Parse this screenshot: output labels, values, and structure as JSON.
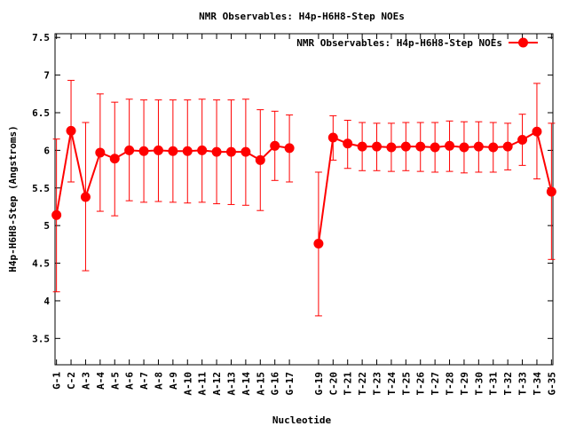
{
  "chart_data": {
    "type": "line",
    "title": "NMR Observables: H4p-H6H8-Step NOEs",
    "xlabel": "Nucleotide",
    "ylabel": "H4p-H6H8-Step (Angstroms)",
    "ylim": [
      3.15,
      7.55
    ],
    "yticks": [
      3.5,
      4,
      4.5,
      5,
      5.5,
      6,
      6.5,
      7,
      7.5
    ],
    "ytick_labels": [
      "3.5",
      "4",
      "4.5",
      "5",
      "5.5",
      "6",
      "6.5",
      "7",
      "7.5"
    ],
    "xlim": [
      0.9,
      35.1
    ],
    "grid": false,
    "legend_position": "top-right",
    "series_color": "#ff0000",
    "series": [
      {
        "name": "NMR Observables: H4p-H6H8-Step NOEs",
        "points": [
          {
            "label": "G-1",
            "x": 1,
            "y": 5.14,
            "err_low": 4.12,
            "err_high": 6.15
          },
          {
            "label": "C-2",
            "x": 2,
            "y": 6.26,
            "err_low": 5.58,
            "err_high": 6.93
          },
          {
            "label": "A-3",
            "x": 3,
            "y": 5.38,
            "err_low": 4.4,
            "err_high": 6.37
          },
          {
            "label": "A-4",
            "x": 4,
            "y": 5.97,
            "err_low": 5.19,
            "err_high": 6.75
          },
          {
            "label": "A-5",
            "x": 5,
            "y": 5.89,
            "err_low": 5.13,
            "err_high": 6.64
          },
          {
            "label": "A-6",
            "x": 6,
            "y": 6.0,
            "err_low": 5.33,
            "err_high": 6.68
          },
          {
            "label": "A-7",
            "x": 7,
            "y": 5.99,
            "err_low": 5.31,
            "err_high": 6.67
          },
          {
            "label": "A-8",
            "x": 8,
            "y": 6.0,
            "err_low": 5.32,
            "err_high": 6.67
          },
          {
            "label": "A-9",
            "x": 9,
            "y": 5.99,
            "err_low": 5.31,
            "err_high": 6.67
          },
          {
            "label": "A-10",
            "x": 10,
            "y": 5.99,
            "err_low": 5.3,
            "err_high": 6.67
          },
          {
            "label": "A-11",
            "x": 11,
            "y": 6.0,
            "err_low": 5.31,
            "err_high": 6.68
          },
          {
            "label": "A-12",
            "x": 12,
            "y": 5.98,
            "err_low": 5.29,
            "err_high": 6.67
          },
          {
            "label": "A-13",
            "x": 13,
            "y": 5.98,
            "err_low": 5.28,
            "err_high": 6.67
          },
          {
            "label": "A-14",
            "x": 14,
            "y": 5.98,
            "err_low": 5.27,
            "err_high": 6.68
          },
          {
            "label": "A-15",
            "x": 15,
            "y": 5.87,
            "err_low": 5.2,
            "err_high": 6.54
          },
          {
            "label": "G-16",
            "x": 16,
            "y": 6.06,
            "err_low": 5.6,
            "err_high": 6.52
          },
          {
            "label": "G-17",
            "x": 17,
            "y": 6.03,
            "err_low": 5.58,
            "err_high": 6.47
          },
          {
            "label": "G-19",
            "x": 19,
            "y": 4.76,
            "err_low": 3.8,
            "err_high": 5.71
          },
          {
            "label": "C-20",
            "x": 20,
            "y": 6.17,
            "err_low": 5.87,
            "err_high": 6.46
          },
          {
            "label": "T-21",
            "x": 21,
            "y": 6.09,
            "err_low": 5.76,
            "err_high": 6.4
          },
          {
            "label": "T-22",
            "x": 22,
            "y": 6.05,
            "err_low": 5.73,
            "err_high": 6.37
          },
          {
            "label": "T-23",
            "x": 23,
            "y": 6.05,
            "err_low": 5.73,
            "err_high": 6.36
          },
          {
            "label": "T-24",
            "x": 24,
            "y": 6.04,
            "err_low": 5.72,
            "err_high": 6.36
          },
          {
            "label": "T-25",
            "x": 25,
            "y": 6.05,
            "err_low": 5.73,
            "err_high": 6.37
          },
          {
            "label": "T-26",
            "x": 26,
            "y": 6.05,
            "err_low": 5.72,
            "err_high": 6.37
          },
          {
            "label": "T-27",
            "x": 27,
            "y": 6.04,
            "err_low": 5.71,
            "err_high": 6.37
          },
          {
            "label": "T-28",
            "x": 28,
            "y": 6.06,
            "err_low": 5.72,
            "err_high": 6.39
          },
          {
            "label": "T-29",
            "x": 29,
            "y": 6.04,
            "err_low": 5.7,
            "err_high": 6.38
          },
          {
            "label": "T-30",
            "x": 30,
            "y": 6.05,
            "err_low": 5.71,
            "err_high": 6.38
          },
          {
            "label": "T-31",
            "x": 31,
            "y": 6.04,
            "err_low": 5.71,
            "err_high": 6.37
          },
          {
            "label": "T-32",
            "x": 32,
            "y": 6.05,
            "err_low": 5.74,
            "err_high": 6.36
          },
          {
            "label": "T-33",
            "x": 33,
            "y": 6.14,
            "err_low": 5.8,
            "err_high": 6.48
          },
          {
            "label": "T-34",
            "x": 34,
            "y": 6.25,
            "err_low": 5.62,
            "err_high": 6.89
          },
          {
            "label": "G-35",
            "x": 35,
            "y": 5.45,
            "err_low": 4.55,
            "err_high": 6.36
          }
        ]
      }
    ]
  }
}
